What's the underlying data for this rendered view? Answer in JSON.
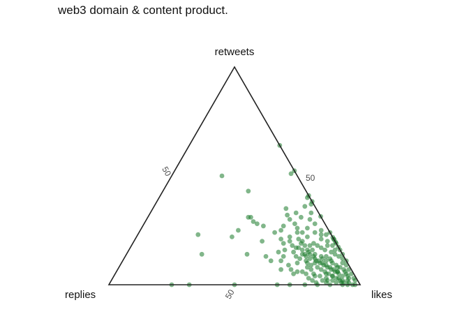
{
  "chart_data": {
    "type": "scatter",
    "title": "web3 domain & content product.",
    "subtype": "ternary",
    "axes": {
      "top": "retweets",
      "left": "replies",
      "right": "likes"
    },
    "axis_range": [
      0,
      100
    ],
    "tick_values": [
      50
    ],
    "tick_labels": [
      "50"
    ],
    "grid": false,
    "point_color": "#1a7a2a",
    "points_format": "[likes, retweets, replies] percentages",
    "points": [
      [
        36,
        64,
        0
      ],
      [
        51,
        56,
        -7
      ],
      [
        47,
        51,
        2
      ],
      [
        34,
        43,
        23
      ],
      [
        62,
        43,
        -5
      ],
      [
        59,
        40,
        1
      ],
      [
        63,
        39,
        -2
      ],
      [
        62,
        37,
        1
      ],
      [
        60,
        36,
        4
      ],
      [
        70,
        32,
        -2
      ],
      [
        65,
        30,
        5
      ],
      [
        66,
        26,
        8
      ],
      [
        72,
        25,
        3
      ],
      [
        75,
        23,
        2
      ],
      [
        79,
        21,
        0
      ],
      [
        40,
        31,
        29
      ],
      [
        41,
        31,
        28
      ],
      [
        39,
        25,
        36
      ],
      [
        43,
        29,
        28
      ],
      [
        45,
        28,
        27
      ],
      [
        48,
        27,
        25
      ],
      [
        56,
        27,
        17
      ],
      [
        56,
        25,
        19
      ],
      [
        54,
        24,
        22
      ],
      [
        51,
        20,
        29
      ],
      [
        24,
        23,
        53
      ],
      [
        38,
        22,
        40
      ],
      [
        61,
        22,
        17
      ],
      [
        65,
        21,
        14
      ],
      [
        67,
        20,
        13
      ],
      [
        72,
        19,
        9
      ],
      [
        78,
        18,
        4
      ],
      [
        82,
        16,
        2
      ],
      [
        78,
        13,
        9
      ],
      [
        81,
        11,
        8
      ],
      [
        84,
        10,
        6
      ],
      [
        87,
        8,
        5
      ],
      [
        88,
        6,
        6
      ],
      [
        90,
        3,
        7
      ],
      [
        92,
        2,
        6
      ],
      [
        95,
        1,
        4
      ],
      [
        63,
        13,
        24
      ],
      [
        71,
        14,
        15
      ],
      [
        74,
        12,
        14
      ],
      [
        70,
        10,
        20
      ],
      [
        75,
        8,
        17
      ],
      [
        79,
        5,
        16
      ],
      [
        84,
        5,
        11
      ],
      [
        85,
        3,
        12
      ],
      [
        87,
        4,
        9
      ],
      [
        30,
        14,
        56
      ],
      [
        48,
        14,
        38
      ],
      [
        56,
        13,
        31
      ],
      [
        59,
        11,
        30
      ],
      [
        72,
        6,
        22
      ],
      [
        77,
        7,
        16
      ],
      [
        20,
        50,
        30
      ],
      [
        50,
        0,
        50
      ],
      [
        32,
        0,
        68
      ],
      [
        25,
        0,
        75
      ],
      [
        67,
        0,
        33
      ],
      [
        72,
        0,
        28
      ],
      [
        78,
        0,
        22
      ],
      [
        83,
        0,
        17
      ],
      [
        88,
        0,
        12
      ],
      [
        93,
        0,
        7
      ],
      [
        98,
        0,
        2
      ],
      [
        84,
        22,
        -6
      ],
      [
        85,
        20,
        -5
      ],
      [
        86,
        18,
        -4
      ],
      [
        81,
        15,
        4
      ],
      [
        83,
        14,
        3
      ],
      [
        85,
        13,
        2
      ],
      [
        87,
        12,
        1
      ],
      [
        89,
        11,
        0
      ],
      [
        86,
        9,
        5
      ],
      [
        88,
        8,
        4
      ],
      [
        90,
        7,
        3
      ],
      [
        91,
        6,
        3
      ],
      [
        92,
        5,
        3
      ],
      [
        93,
        4,
        3
      ],
      [
        94,
        3,
        3
      ],
      [
        80,
        13,
        7
      ],
      [
        79,
        12,
        9
      ],
      [
        82,
        12,
        6
      ],
      [
        83,
        11,
        6
      ],
      [
        80,
        10,
        10
      ],
      [
        82,
        9,
        9
      ],
      [
        84,
        8,
        8
      ],
      [
        86,
        7,
        7
      ],
      [
        88,
        6,
        6
      ],
      [
        83,
        6,
        11
      ],
      [
        85,
        5,
        10
      ],
      [
        87,
        4,
        9
      ],
      [
        89,
        3,
        8
      ],
      [
        91,
        2,
        7
      ],
      [
        93,
        1,
        6
      ],
      [
        76,
        17,
        7
      ],
      [
        78,
        16,
        6
      ],
      [
        80,
        18,
        2
      ],
      [
        77,
        20,
        3
      ],
      [
        74,
        18,
        8
      ],
      [
        73,
        16,
        11
      ],
      [
        75,
        14,
        11
      ],
      [
        77,
        10,
        13
      ],
      [
        79,
        8,
        13
      ],
      [
        81,
        7,
        12
      ],
      [
        82,
        4,
        14
      ],
      [
        86,
        2,
        12
      ],
      [
        74,
        21,
        5
      ],
      [
        73,
        23,
        4
      ],
      [
        76,
        24,
        0
      ],
      [
        79,
        22,
        -1
      ],
      [
        82,
        20,
        -2
      ],
      [
        70,
        24,
        6
      ],
      [
        68,
        22,
        10
      ],
      [
        71,
        18,
        11
      ],
      [
        69,
        16,
        15
      ],
      [
        72,
        15,
        13
      ],
      [
        76,
        12,
        12
      ],
      [
        78,
        11,
        11
      ],
      [
        66,
        15,
        19
      ],
      [
        68,
        13,
        19
      ],
      [
        70,
        12,
        18
      ],
      [
        73,
        11,
        16
      ],
      [
        76,
        9,
        15
      ],
      [
        74,
        6,
        20
      ],
      [
        80,
        4,
        16
      ],
      [
        64,
        18,
        18
      ],
      [
        66,
        17,
        17
      ],
      [
        62,
        16,
        22
      ],
      [
        60,
        15,
        25
      ],
      [
        63,
        11,
        26
      ],
      [
        67,
        9,
        24
      ],
      [
        65,
        7,
        28
      ],
      [
        69,
        7,
        24
      ],
      [
        71,
        5,
        24
      ],
      [
        88,
        10,
        2
      ],
      [
        90,
        9,
        1
      ],
      [
        92,
        7,
        1
      ],
      [
        94,
        5,
        1
      ],
      [
        96,
        3,
        1
      ],
      [
        97,
        2,
        1
      ],
      [
        84,
        16,
        0
      ],
      [
        86,
        14,
        0
      ],
      [
        91,
        4,
        5
      ],
      [
        89,
        5,
        6
      ],
      [
        87,
        6,
        7
      ],
      [
        85,
        7,
        8
      ],
      [
        83,
        8,
        9
      ],
      [
        81,
        9,
        10
      ],
      [
        79,
        10,
        11
      ],
      [
        77,
        11,
        12
      ],
      [
        75,
        13,
        12
      ],
      [
        73,
        14,
        13
      ],
      [
        71,
        16,
        13
      ],
      [
        69,
        18,
        13
      ],
      [
        67,
        19,
        14
      ],
      [
        65,
        24,
        11
      ],
      [
        68,
        28,
        4
      ],
      [
        61,
        31,
        8
      ],
      [
        64,
        33,
        3
      ],
      [
        58,
        33,
        9
      ],
      [
        57,
        30,
        13
      ],
      [
        55,
        32,
        13
      ],
      [
        53,
        35,
        12
      ],
      [
        60,
        28,
        12
      ],
      [
        62,
        26,
        12
      ],
      [
        63,
        24,
        13
      ],
      [
        58,
        21,
        21
      ],
      [
        60,
        19,
        21
      ],
      [
        62,
        20,
        18
      ],
      [
        67,
        17,
        16
      ],
      [
        70,
        14,
        16
      ],
      [
        72,
        13,
        15
      ],
      [
        74,
        10,
        16
      ],
      [
        76,
        5,
        19
      ],
      [
        78,
        3,
        19
      ],
      [
        80,
        2,
        18
      ],
      [
        82,
        1,
        17
      ],
      [
        84,
        2,
        14
      ],
      [
        86,
        1,
        13
      ],
      [
        88,
        2,
        10
      ],
      [
        90,
        1,
        9
      ],
      [
        92,
        1,
        7
      ],
      [
        94,
        2,
        4
      ],
      [
        95,
        0,
        5
      ],
      [
        97,
        0,
        3
      ]
    ]
  }
}
